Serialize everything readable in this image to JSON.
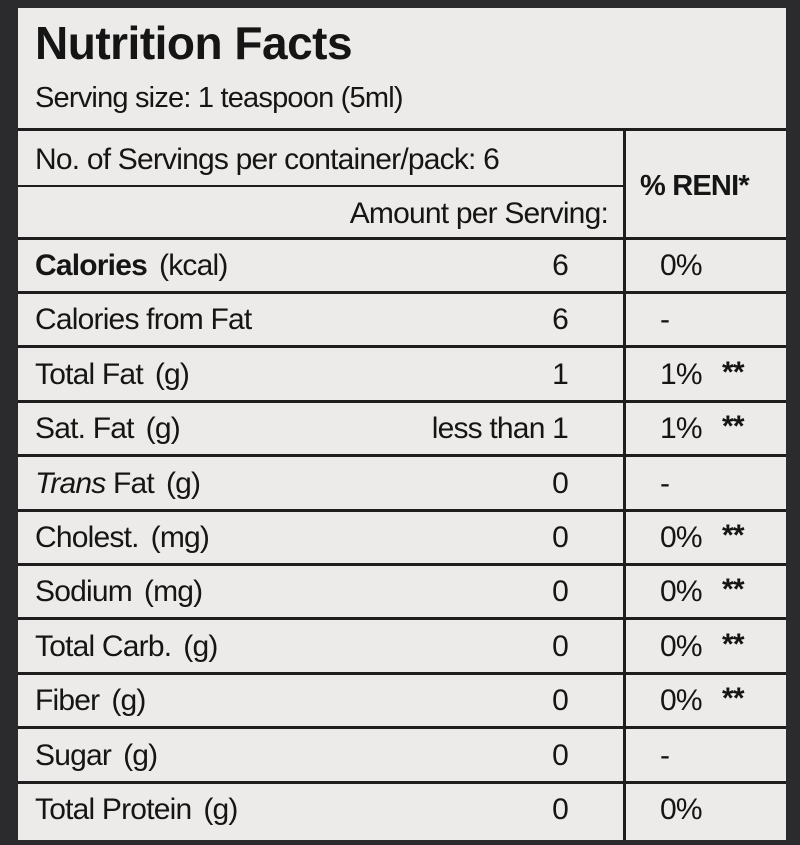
{
  "header": {
    "title": "Nutrition Facts",
    "serving_size_label": "Serving size:",
    "serving_size": "1 teaspoon (5ml)"
  },
  "table": {
    "servings": "No. of Servings per container/pack: 6",
    "amount_header": "Amount per Serving:",
    "reni_header": "% RENI*",
    "rows": [
      {
        "label": "Calories",
        "unit": "(kcal)",
        "amount": "6",
        "reni": "0%"
      },
      {
        "label": "Calories from Fat",
        "amount": "6",
        "reni": "-"
      },
      {
        "label": "Total Fat",
        "unit": "(g)",
        "amount": "1",
        "reni": "1%",
        "note": "**"
      },
      {
        "label": "Sat. Fat",
        "unit": "(g)",
        "amount": "less than 1",
        "reni": "1%",
        "note": "**"
      },
      {
        "label_italic": "Trans",
        "label": "Fat",
        "unit": "(g)",
        "amount": "0",
        "reni": "-"
      },
      {
        "label": "Cholest.",
        "unit": "(mg)",
        "amount": "0",
        "reni": "0%",
        "note": "**"
      },
      {
        "label": "Sodium",
        "unit": "(mg)",
        "amount": "0",
        "reni": "0%",
        "note": "**"
      },
      {
        "label": "Total Carb.",
        "unit": "(g)",
        "amount": "0",
        "reni": "0%",
        "note": "**"
      },
      {
        "label": "Fiber",
        "unit": "(g)",
        "amount": "0",
        "reni": "0%",
        "note": "**"
      },
      {
        "label": "Sugar",
        "unit": "(g)",
        "amount": "0",
        "reni": "-"
      },
      {
        "label": "Total Protein",
        "unit": "(g)",
        "amount": "0",
        "reni": "0%"
      }
    ]
  }
}
